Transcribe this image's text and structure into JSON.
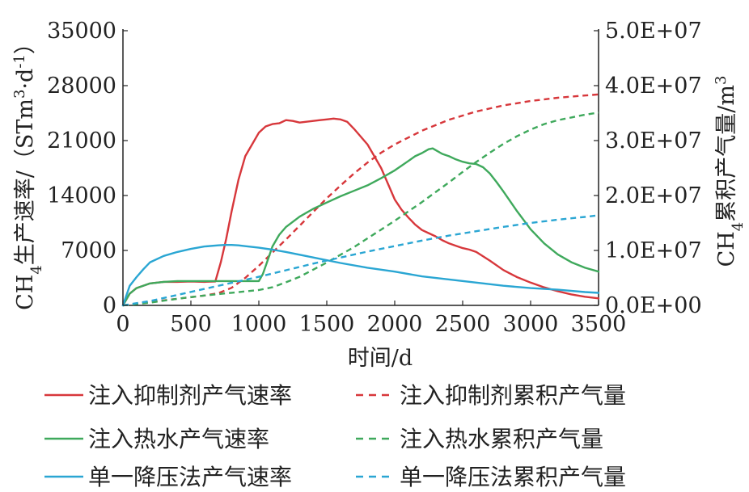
{
  "chart_data": {
    "type": "line",
    "xlabel": "时间/d",
    "ylabel": "CH4生产速率/（STm3·d-1）",
    "ylabel_parts": {
      "a": "CH",
      "sub": "4",
      "b": "生产速率/（STm",
      "sup1": "3",
      "c": "·d",
      "sup2": "-1",
      "d": "）"
    },
    "y2label": "CH4累积产气量/m3",
    "y2label_parts": {
      "a": "CH",
      "sub": "4",
      "b": "累积产气量/m",
      "sup": "3"
    },
    "xlim": [
      0,
      3500
    ],
    "ylim": [
      0,
      35000
    ],
    "y2lim": [
      0,
      50000000
    ],
    "x_ticks": [
      "0",
      "500",
      "1000",
      "1500",
      "2000",
      "2500",
      "3000",
      "3500"
    ],
    "y_ticks": [
      "0",
      "7000",
      "14000",
      "21000",
      "28000",
      "35000"
    ],
    "y2_ticks": [
      "0.0E+00",
      "1.0E+07",
      "2.0E+07",
      "3.0E+07",
      "4.0E+07",
      "5.0E+07"
    ],
    "colors": {
      "red": "#d7373b",
      "green": "#3fa95c",
      "blue": "#2aa6d3"
    },
    "series": [
      {
        "name": "注入抑制剂产气速率",
        "axis": "left",
        "style": "solid",
        "color": "#d7373b",
        "x": [
          0,
          50,
          100,
          200,
          300,
          400,
          500,
          600,
          680,
          720,
          760,
          800,
          850,
          900,
          950,
          1000,
          1050,
          1100,
          1150,
          1200,
          1250,
          1300,
          1350,
          1400,
          1450,
          1500,
          1550,
          1600,
          1650,
          1700,
          1750,
          1800,
          1850,
          1900,
          1950,
          2000,
          2050,
          2100,
          2150,
          2200,
          2250,
          2300,
          2350,
          2400,
          2450,
          2500,
          2550,
          2600,
          2700,
          2800,
          2900,
          3000,
          3100,
          3200,
          3300,
          3400,
          3500
        ],
        "y": [
          0,
          1500,
          2200,
          2800,
          3000,
          3000,
          3050,
          3000,
          3050,
          5500,
          8500,
          12000,
          16000,
          19000,
          20500,
          22000,
          22800,
          23100,
          23200,
          23600,
          23500,
          23300,
          23400,
          23500,
          23600,
          23700,
          23800,
          23700,
          23400,
          22500,
          21500,
          20500,
          19000,
          17500,
          15500,
          13500,
          12200,
          11200,
          10300,
          9600,
          9200,
          8800,
          8300,
          7900,
          7600,
          7300,
          7100,
          6800,
          5700,
          4500,
          3600,
          2900,
          2300,
          1800,
          1400,
          1100,
          900
        ]
      },
      {
        "name": "注入抑制剂累积产气量",
        "axis": "right",
        "style": "dashed",
        "color": "#d7373b",
        "x": [
          0,
          200,
          400,
          600,
          700,
          800,
          900,
          1000,
          1100,
          1200,
          1300,
          1400,
          1500,
          1600,
          1700,
          1800,
          1900,
          2000,
          2200,
          2400,
          2600,
          2800,
          3000,
          3200,
          3400,
          3500
        ],
        "y": [
          0,
          600000,
          1200000,
          1800000,
          2200000,
          3200000,
          5000000,
          7200000,
          9600000,
          12000000,
          14500000,
          17000000,
          19500000,
          21800000,
          24000000,
          26000000,
          27800000,
          29300000,
          31800000,
          33800000,
          35300000,
          36400000,
          37200000,
          37800000,
          38200000,
          38400000
        ]
      },
      {
        "name": "注入热水产气速率",
        "axis": "left",
        "style": "solid",
        "color": "#3fa95c",
        "x": [
          0,
          50,
          100,
          200,
          300,
          400,
          500,
          600,
          700,
          800,
          900,
          1000,
          1030,
          1060,
          1100,
          1150,
          1200,
          1300,
          1400,
          1500,
          1600,
          1700,
          1800,
          1900,
          2000,
          2050,
          2100,
          2150,
          2200,
          2250,
          2280,
          2300,
          2350,
          2400,
          2450,
          2500,
          2550,
          2600,
          2650,
          2700,
          2750,
          2800,
          2900,
          3000,
          3100,
          3200,
          3300,
          3400,
          3500
        ],
        "y": [
          0,
          1500,
          2200,
          2800,
          3000,
          3100,
          3100,
          3100,
          3100,
          3100,
          3100,
          3100,
          4000,
          5500,
          7500,
          9000,
          10000,
          11300,
          12300,
          13100,
          13900,
          14600,
          15300,
          16200,
          17200,
          17800,
          18400,
          19000,
          19400,
          19900,
          20000,
          19800,
          19300,
          19000,
          18600,
          18300,
          18100,
          18000,
          17600,
          16800,
          15700,
          14500,
          12000,
          9700,
          7900,
          6500,
          5500,
          4800,
          4300
        ]
      },
      {
        "name": "注入热水累积产气量",
        "axis": "right",
        "style": "dashed",
        "color": "#3fa95c",
        "x": [
          0,
          200,
          400,
          600,
          800,
          1000,
          1100,
          1200,
          1300,
          1400,
          1500,
          1600,
          1700,
          1800,
          1900,
          2000,
          2100,
          2200,
          2300,
          2400,
          2500,
          2600,
          2700,
          2800,
          2900,
          3000,
          3100,
          3200,
          3300,
          3400,
          3500
        ],
        "y": [
          0,
          500000,
          1200000,
          1800000,
          2300000,
          2800000,
          3300000,
          4200000,
          5200000,
          6500000,
          7800000,
          9200000,
          10600000,
          12200000,
          13800000,
          15400000,
          17100000,
          18800000,
          20600000,
          22400000,
          24300000,
          26100000,
          27800000,
          29400000,
          30800000,
          32000000,
          33000000,
          33700000,
          34200000,
          34700000,
          35100000
        ]
      },
      {
        "name": "单一降压法产气速率",
        "axis": "left",
        "style": "solid",
        "color": "#2aa6d3",
        "x": [
          0,
          50,
          100,
          150,
          200,
          300,
          400,
          500,
          600,
          700,
          750,
          800,
          850,
          900,
          1000,
          1100,
          1200,
          1400,
          1600,
          1800,
          2000,
          2200,
          2400,
          2600,
          2800,
          3000,
          3200,
          3400,
          3500
        ],
        "y": [
          0,
          2500,
          3600,
          4600,
          5500,
          6300,
          6800,
          7200,
          7500,
          7650,
          7700,
          7700,
          7650,
          7550,
          7350,
          7100,
          6800,
          6100,
          5400,
          4800,
          4300,
          3700,
          3300,
          2900,
          2500,
          2200,
          2000,
          1700,
          1600
        ]
      },
      {
        "name": "单一降压法累积产气量",
        "axis": "right",
        "style": "dashed",
        "color": "#2aa6d3",
        "x": [
          0,
          200,
          400,
          600,
          800,
          1000,
          1200,
          1400,
          1600,
          1800,
          2000,
          2200,
          2400,
          2600,
          2800,
          3000,
          3200,
          3400,
          3500
        ],
        "y": [
          0,
          800000,
          1900000,
          3000000,
          4100000,
          5200000,
          6400000,
          7600000,
          8700000,
          9800000,
          10800000,
          11800000,
          12700000,
          13500000,
          14300000,
          15000000,
          15600000,
          16100000,
          16400000
        ]
      }
    ],
    "legend": [
      {
        "label": "注入抑制剂产气速率",
        "color": "#d7373b",
        "style": "solid"
      },
      {
        "label": "注入抑制剂累积产气量",
        "color": "#d7373b",
        "style": "dashed"
      },
      {
        "label": "注入热水产气速率",
        "color": "#3fa95c",
        "style": "solid"
      },
      {
        "label": "注入热水累积产气量",
        "color": "#3fa95c",
        "style": "dashed"
      },
      {
        "label": "单一降压法产气速率",
        "color": "#2aa6d3",
        "style": "solid"
      },
      {
        "label": "单一降压法累积产气量",
        "color": "#2aa6d3",
        "style": "dashed"
      }
    ],
    "legend_position": "bottom",
    "grid": false
  }
}
